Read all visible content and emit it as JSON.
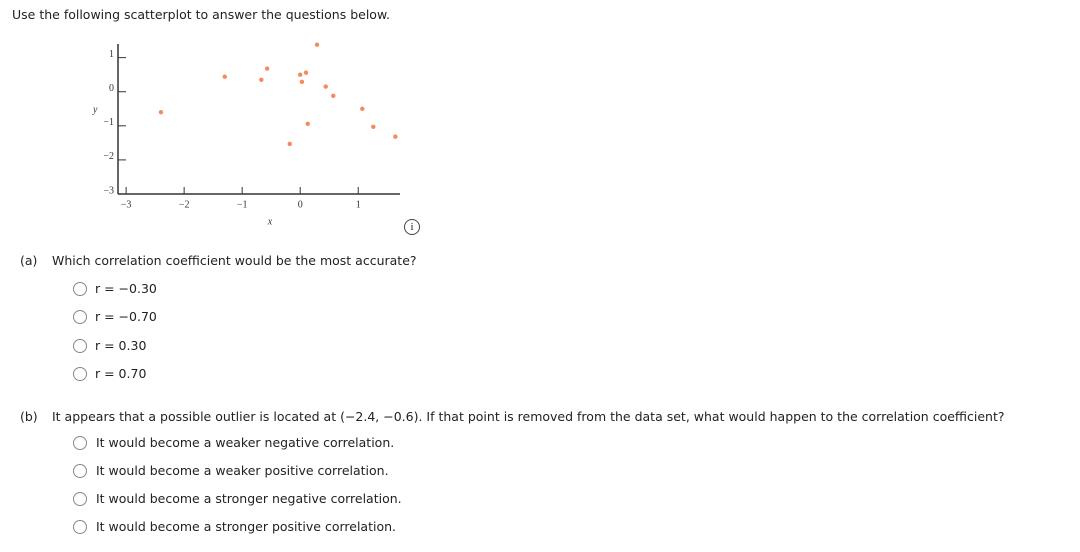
{
  "intro": "Use the following scatterplot to answer the questions below.",
  "chart_data": {
    "type": "scatter",
    "x_label": "x",
    "y_label": "y",
    "color": "#f58a5a",
    "x": [
      -2.4,
      -1.3,
      -0.67,
      -0.57,
      -0.18,
      0.0,
      0.1,
      0.03,
      0.13,
      0.29,
      0.44,
      0.57,
      1.07,
      1.26,
      1.64
    ],
    "values": [
      -0.6,
      0.44,
      0.35,
      0.68,
      -1.53,
      0.5,
      0.56,
      0.29,
      -0.94,
      1.38,
      0.15,
      -0.12,
      -0.5,
      -1.03,
      -1.32
    ],
    "xlim": [
      -3.14,
      1.72
    ],
    "ylim": [
      -3,
      1.4
    ],
    "xticks": [
      {
        "value": -3,
        "label": "−3"
      },
      {
        "value": -2,
        "label": "−2"
      },
      {
        "value": -1,
        "label": "−1"
      },
      0,
      1
    ],
    "yticks": [
      {
        "value": -3,
        "label": "−3"
      },
      {
        "value": -2,
        "label": "−2"
      },
      {
        "value": -1,
        "label": "−1"
      },
      0,
      1
    ]
  },
  "questions": [
    {
      "label": "(a)",
      "text": "Which correlation coefficient would be the most accurate?",
      "options": [
        "r = −0.30",
        "r = −0.70",
        "r = 0.30",
        "r = 0.70"
      ]
    },
    {
      "label": "(b)",
      "text": "It appears that a possible outlier is located at (−2.4, −0.6). If that point is removed from the data set, what would happen to the correlation coefficient?",
      "options": [
        "It would become a weaker negative correlation.",
        "It would become a weaker positive correlation.",
        "It would become a stronger negative correlation.",
        "It would become a stronger positive correlation."
      ]
    }
  ]
}
